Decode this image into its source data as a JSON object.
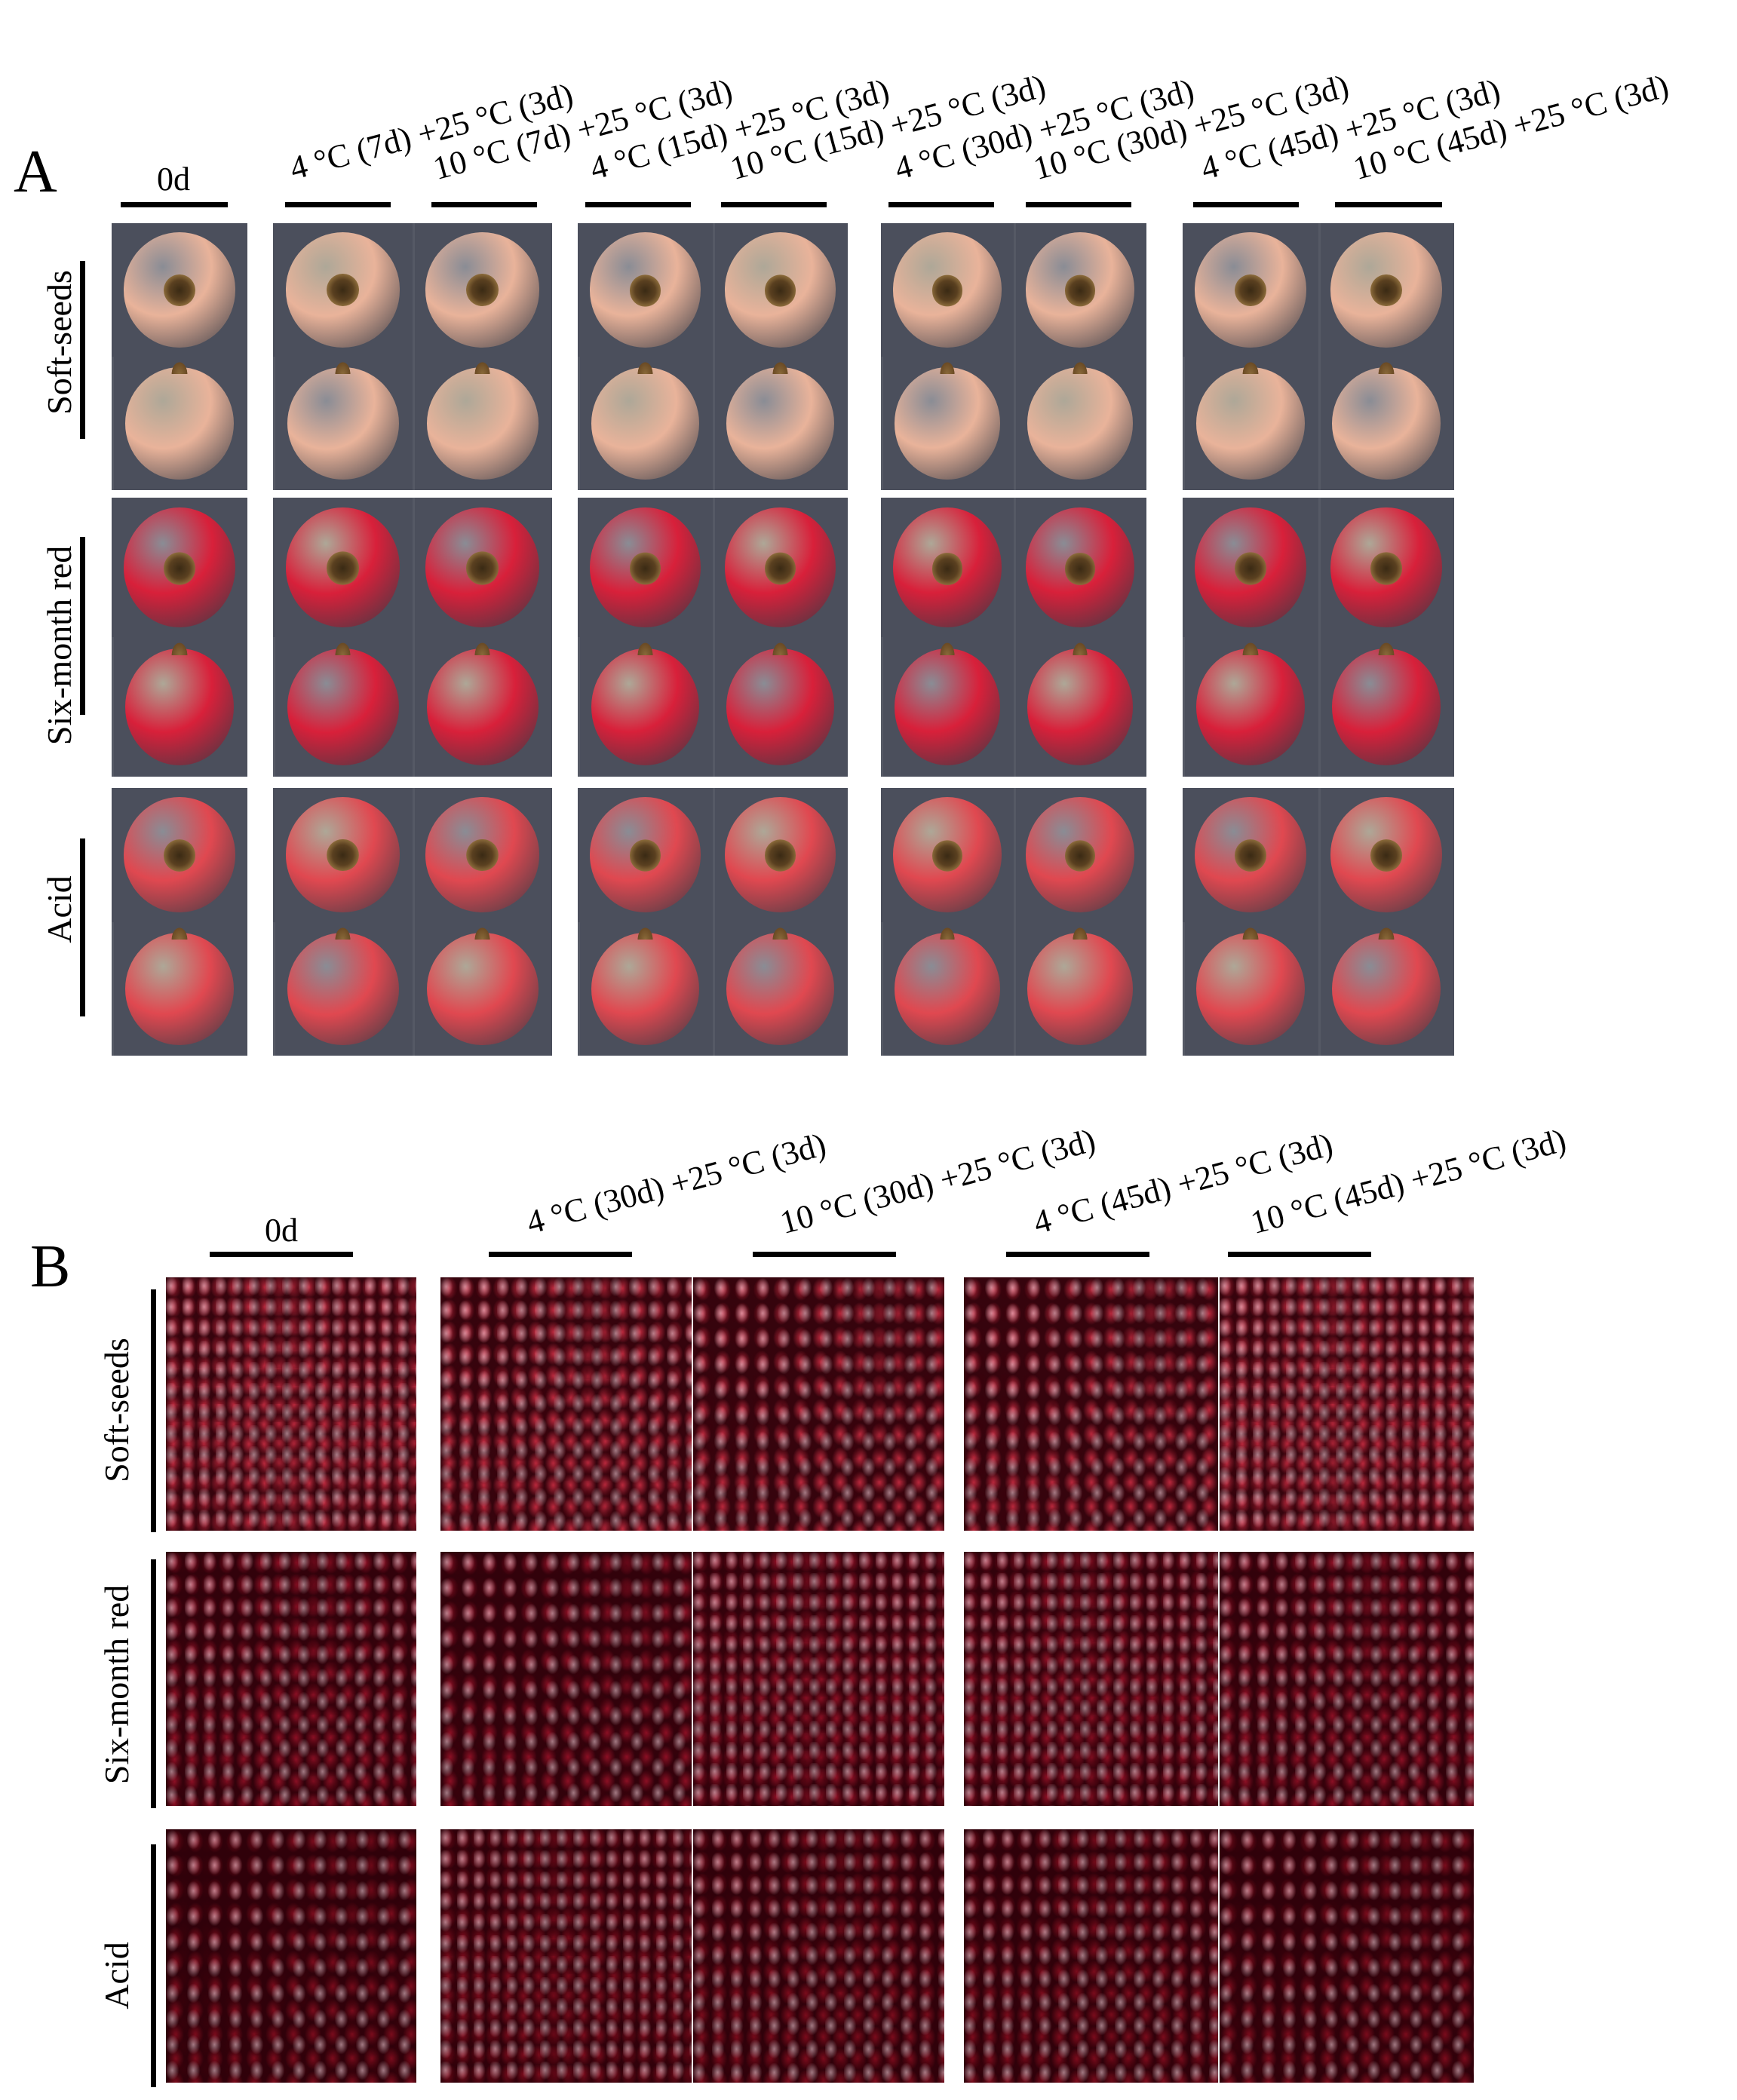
{
  "panel_a": {
    "letter": "A",
    "column_labels": [
      "0d",
      "4 °C (7d) +25 °C (3d)",
      "10 °C (7d) +25 °C (3d)",
      "4 °C (15d) +25 °C (3d)",
      "10 °C (15d) +25 °C (3d)",
      "4 °C (30d) +25 °C (3d)",
      "10 °C (30d) +25 °C (3d)",
      "4 °C (45d) +25 °C (3d)",
      "10 °C (45d) +25 °C (3d)"
    ],
    "row_labels": [
      "Soft-seeds",
      "Six-month red",
      "Acid"
    ],
    "fruit_colors": {
      "soft_seeds": "#e9b39a",
      "six_month_red": "#d8203a",
      "acid": "#e04850"
    }
  },
  "panel_b": {
    "letter": "B",
    "column_labels": [
      "0d",
      "4 °C (30d) +25 °C (3d)",
      "10 °C (30d) +25 °C (3d)",
      "4 °C (45d) +25 °C (3d)",
      "10 °C (45d) +25 °C (3d)"
    ],
    "row_labels": [
      "Soft-seeds",
      "Six-month red",
      "Acid"
    ],
    "aril_colors": {
      "soft_seeds": "#b8283c",
      "six_month_red": "#8a1024",
      "acid": "#7a0c1c"
    }
  }
}
